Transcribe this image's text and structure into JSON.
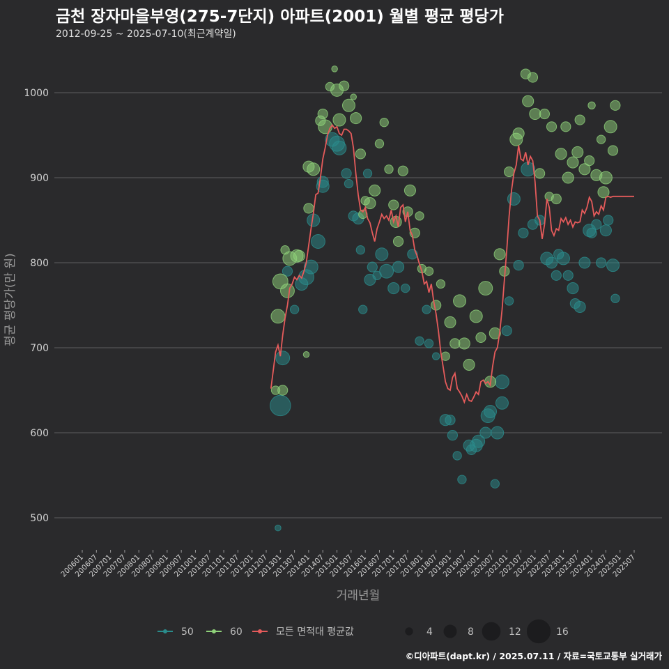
{
  "header": {
    "title": "금천 장자마을부영(275-7단지) 아파트(2001) 월별 평균 평당가",
    "subtitle": "2012-09-25 ~ 2025-07-10(최근계약일)"
  },
  "footer": {
    "source": "©디아파트(dapt.kr) / 2025.07.11 / 자료=국토교통부 실거래가"
  },
  "colors": {
    "area50": "#2a8c8c",
    "area60": "#8fd17a",
    "avg": "#e55b5b",
    "grid": "#555555",
    "background": "#2a2a2c"
  },
  "chart_data": {
    "type": "scatter",
    "xlabel": "거래년월",
    "ylabel": "평균 평당가(만 원)",
    "ylim": [
      450,
      1040
    ],
    "yticks": [
      500,
      600,
      700,
      800,
      900,
      1000
    ],
    "xticks": [
      "200601",
      "200607",
      "200701",
      "200707",
      "200801",
      "200807",
      "200901",
      "200907",
      "201001",
      "201007",
      "201101",
      "201107",
      "201201",
      "201207",
      "201301",
      "201307",
      "201401",
      "201407",
      "201501",
      "201507",
      "201601",
      "201607",
      "201701",
      "201707",
      "201801",
      "201807",
      "201901",
      "201907",
      "202001",
      "202007",
      "202101",
      "202107",
      "202201",
      "202207",
      "202301",
      "202307",
      "202401",
      "202407",
      "202501",
      "202507"
    ],
    "legend": {
      "series": [
        {
          "name": "50",
          "color": "#2a8c8c"
        },
        {
          "name": "60",
          "color": "#8fd17a"
        },
        {
          "name": "모든 면적대 평균값",
          "color": "#e55b5b"
        }
      ],
      "sizes": [
        4,
        8,
        12,
        16
      ]
    },
    "avg_line": [
      [
        "2012-09",
        652
      ],
      [
        "2012-11",
        695
      ],
      [
        "2012-12",
        703
      ],
      [
        "2013-01",
        690
      ],
      [
        "2013-02",
        715
      ],
      [
        "2013-03",
        735
      ],
      [
        "2013-04",
        750
      ],
      [
        "2013-05",
        770
      ],
      [
        "2013-06",
        775
      ],
      [
        "2013-07",
        783
      ],
      [
        "2013-08",
        780
      ],
      [
        "2013-09",
        785
      ],
      [
        "2013-10",
        782
      ],
      [
        "2013-11",
        790
      ],
      [
        "2013-12",
        800
      ],
      [
        "2014-01",
        820
      ],
      [
        "2014-02",
        840
      ],
      [
        "2014-03",
        858
      ],
      [
        "2014-04",
        880
      ],
      [
        "2014-05",
        882
      ],
      [
        "2014-06",
        900
      ],
      [
        "2014-07",
        922
      ],
      [
        "2014-08",
        935
      ],
      [
        "2014-09",
        950
      ],
      [
        "2014-10",
        958
      ],
      [
        "2014-11",
        962
      ],
      [
        "2014-12",
        958
      ],
      [
        "2015-01",
        960
      ],
      [
        "2015-02",
        952
      ],
      [
        "2015-03",
        950
      ],
      [
        "2015-04",
        957
      ],
      [
        "2015-05",
        957
      ],
      [
        "2015-06",
        955
      ],
      [
        "2015-07",
        952
      ],
      [
        "2015-08",
        935
      ],
      [
        "2015-09",
        905
      ],
      [
        "2015-10",
        880
      ],
      [
        "2015-11",
        862
      ],
      [
        "2015-12",
        860
      ],
      [
        "2016-01",
        865
      ],
      [
        "2016-02",
        852
      ],
      [
        "2016-03",
        847
      ],
      [
        "2016-04",
        835
      ],
      [
        "2016-05",
        825
      ],
      [
        "2016-06",
        840
      ],
      [
        "2016-07",
        848
      ],
      [
        "2016-08",
        857
      ],
      [
        "2016-09",
        852
      ],
      [
        "2016-10",
        855
      ],
      [
        "2016-11",
        850
      ],
      [
        "2016-12",
        862
      ],
      [
        "2017-01",
        848
      ],
      [
        "2017-02",
        855
      ],
      [
        "2017-03",
        842
      ],
      [
        "2017-04",
        865
      ],
      [
        "2017-05",
        868
      ],
      [
        "2017-06",
        848
      ],
      [
        "2017-07",
        860
      ],
      [
        "2017-08",
        838
      ],
      [
        "2017-09",
        832
      ],
      [
        "2017-10",
        815
      ],
      [
        "2017-11",
        808
      ],
      [
        "2017-12",
        798
      ],
      [
        "2018-01",
        790
      ],
      [
        "2018-02",
        775
      ],
      [
        "2018-03",
        778
      ],
      [
        "2018-04",
        765
      ],
      [
        "2018-05",
        775
      ],
      [
        "2018-06",
        755
      ],
      [
        "2018-07",
        740
      ],
      [
        "2018-08",
        720
      ],
      [
        "2018-09",
        695
      ],
      [
        "2018-10",
        678
      ],
      [
        "2018-11",
        660
      ],
      [
        "2018-12",
        652
      ],
      [
        "2019-01",
        650
      ],
      [
        "2019-02",
        665
      ],
      [
        "2019-03",
        670
      ],
      [
        "2019-04",
        652
      ],
      [
        "2019-05",
        648
      ],
      [
        "2019-06",
        643
      ],
      [
        "2019-07",
        636
      ],
      [
        "2019-08",
        645
      ],
      [
        "2019-09",
        638
      ],
      [
        "2019-10",
        637
      ],
      [
        "2019-11",
        642
      ],
      [
        "2019-12",
        648
      ],
      [
        "2020-01",
        645
      ],
      [
        "2020-02",
        660
      ],
      [
        "2020-03",
        662
      ],
      [
        "2020-04",
        658
      ],
      [
        "2020-05",
        660
      ],
      [
        "2020-06",
        656
      ],
      [
        "2020-07",
        678
      ],
      [
        "2020-08",
        695
      ],
      [
        "2020-09",
        700
      ],
      [
        "2020-10",
        718
      ],
      [
        "2020-11",
        745
      ],
      [
        "2020-12",
        780
      ],
      [
        "2021-01",
        815
      ],
      [
        "2021-02",
        855
      ],
      [
        "2021-03",
        885
      ],
      [
        "2021-04",
        905
      ],
      [
        "2021-05",
        915
      ],
      [
        "2021-06",
        938
      ],
      [
        "2021-07",
        922
      ],
      [
        "2021-08",
        920
      ],
      [
        "2021-09",
        930
      ],
      [
        "2021-10",
        915
      ],
      [
        "2021-11",
        925
      ],
      [
        "2021-12",
        920
      ],
      [
        "2022-01",
        895
      ],
      [
        "2022-02",
        855
      ],
      [
        "2022-03",
        850
      ],
      [
        "2022-04",
        828
      ],
      [
        "2022-05",
        845
      ],
      [
        "2022-06",
        875
      ],
      [
        "2022-07",
        865
      ],
      [
        "2022-08",
        838
      ],
      [
        "2022-09",
        832
      ],
      [
        "2022-10",
        840
      ],
      [
        "2022-11",
        838
      ],
      [
        "2022-12",
        852
      ],
      [
        "2023-01",
        848
      ],
      [
        "2023-02",
        853
      ],
      [
        "2023-03",
        845
      ],
      [
        "2023-04",
        850
      ],
      [
        "2023-05",
        842
      ],
      [
        "2023-06",
        848
      ],
      [
        "2023-07",
        847
      ],
      [
        "2023-08",
        848
      ],
      [
        "2023-09",
        862
      ],
      [
        "2023-10",
        858
      ],
      [
        "2023-11",
        865
      ],
      [
        "2023-12",
        877
      ],
      [
        "2024-01",
        872
      ],
      [
        "2024-02",
        855
      ],
      [
        "2024-03",
        860
      ],
      [
        "2024-04",
        857
      ],
      [
        "2024-05",
        867
      ],
      [
        "2024-06",
        862
      ],
      [
        "2024-07",
        877
      ],
      [
        "2024-08",
        878
      ],
      [
        "2024-09",
        877
      ],
      [
        "2024-10",
        878
      ],
      [
        "2024-11",
        878
      ],
      [
        "2024-12",
        878
      ],
      [
        "2025-01",
        878
      ],
      [
        "2025-02",
        878
      ],
      [
        "2025-03",
        878
      ],
      [
        "2025-04",
        878
      ],
      [
        "2025-05",
        878
      ],
      [
        "2025-06",
        878
      ],
      [
        "2025-07",
        878
      ]
    ],
    "points_50": [
      [
        "2013-01",
        632,
        14
      ],
      [
        "2013-02",
        688,
        9
      ],
      [
        "2012-12",
        488,
        3
      ],
      [
        "2013-04",
        790,
        6
      ],
      [
        "2013-07",
        745,
        5
      ],
      [
        "2013-10",
        775,
        8
      ],
      [
        "2013-12",
        783,
        10
      ],
      [
        "2014-02",
        795,
        9
      ],
      [
        "2014-03",
        850,
        8
      ],
      [
        "2014-05",
        825,
        9
      ],
      [
        "2014-07",
        890,
        8
      ],
      [
        "2014-07",
        895,
        7
      ],
      [
        "2014-11",
        945,
        9
      ],
      [
        "2015-01",
        940,
        10
      ],
      [
        "2015-02",
        935,
        9
      ],
      [
        "2015-05",
        905,
        6
      ],
      [
        "2015-06",
        893,
        5
      ],
      [
        "2015-08",
        855,
        6
      ],
      [
        "2015-10",
        852,
        7
      ],
      [
        "2015-11",
        815,
        5
      ],
      [
        "2015-12",
        745,
        5
      ],
      [
        "2016-02",
        905,
        5
      ],
      [
        "2016-03",
        780,
        7
      ],
      [
        "2016-04",
        795,
        6
      ],
      [
        "2016-06",
        785,
        5
      ],
      [
        "2016-08",
        810,
        8
      ],
      [
        "2016-10",
        790,
        9
      ],
      [
        "2017-01",
        770,
        7
      ],
      [
        "2017-03",
        795,
        7
      ],
      [
        "2017-06",
        770,
        5
      ],
      [
        "2017-09",
        810,
        6
      ],
      [
        "2017-12",
        708,
        5
      ],
      [
        "2018-03",
        745,
        5
      ],
      [
        "2018-04",
        705,
        5
      ],
      [
        "2018-07",
        690,
        4
      ],
      [
        "2018-11",
        615,
        7
      ],
      [
        "2019-01",
        615,
        6
      ],
      [
        "2019-02",
        597,
        6
      ],
      [
        "2019-04",
        573,
        5
      ],
      [
        "2019-06",
        545,
        5
      ],
      [
        "2019-09",
        585,
        7
      ],
      [
        "2019-10",
        580,
        6
      ],
      [
        "2019-12",
        585,
        8
      ],
      [
        "2020-01",
        590,
        8
      ],
      [
        "2020-04",
        600,
        7
      ],
      [
        "2020-05",
        620,
        9
      ],
      [
        "2020-06",
        625,
        8
      ],
      [
        "2020-08",
        540,
        5
      ],
      [
        "2020-09",
        600,
        8
      ],
      [
        "2020-11",
        635,
        8
      ],
      [
        "2020-11",
        660,
        9
      ],
      [
        "2021-01",
        720,
        6
      ],
      [
        "2021-02",
        755,
        5
      ],
      [
        "2021-04",
        875,
        8
      ],
      [
        "2021-06",
        797,
        6
      ],
      [
        "2021-08",
        835,
        6
      ],
      [
        "2021-10",
        910,
        9
      ],
      [
        "2021-12",
        845,
        6
      ],
      [
        "2022-03",
        850,
        6
      ],
      [
        "2022-06",
        805,
        8
      ],
      [
        "2022-08",
        800,
        7
      ],
      [
        "2022-10",
        785,
        6
      ],
      [
        "2022-11",
        810,
        6
      ],
      [
        "2023-01",
        805,
        8
      ],
      [
        "2023-03",
        785,
        6
      ],
      [
        "2023-05",
        770,
        7
      ],
      [
        "2023-06",
        752,
        6
      ],
      [
        "2023-08",
        748,
        7
      ],
      [
        "2023-10",
        800,
        7
      ],
      [
        "2023-12",
        838,
        8
      ],
      [
        "2024-01",
        835,
        6
      ],
      [
        "2024-03",
        845,
        6
      ],
      [
        "2024-05",
        800,
        6
      ],
      [
        "2024-07",
        838,
        7
      ],
      [
        "2024-08",
        850,
        6
      ],
      [
        "2024-10",
        797,
        8
      ],
      [
        "2024-11",
        758,
        5
      ]
    ],
    "points_60": [
      [
        "2012-11",
        650,
        5
      ],
      [
        "2012-12",
        737,
        9
      ],
      [
        "2013-01",
        778,
        10
      ],
      [
        "2013-02",
        650,
        6
      ],
      [
        "2013-03",
        815,
        5
      ],
      [
        "2013-05",
        805,
        9
      ],
      [
        "2013-04",
        767,
        9
      ],
      [
        "2013-08",
        808,
        8
      ],
      [
        "2013-09",
        808,
        7
      ],
      [
        "2013-12",
        692,
        3
      ],
      [
        "2014-01",
        864,
        6
      ],
      [
        "2014-01",
        913,
        7
      ],
      [
        "2014-03",
        910,
        8
      ],
      [
        "2014-06",
        967,
        6
      ],
      [
        "2014-07",
        975,
        6
      ],
      [
        "2014-08",
        960,
        9
      ],
      [
        "2014-10",
        1007,
        5
      ],
      [
        "2014-12",
        1028,
        3
      ],
      [
        "2015-01",
        1003,
        8
      ],
      [
        "2015-02",
        968,
        8
      ],
      [
        "2015-04",
        1008,
        6
      ],
      [
        "2015-06",
        985,
        8
      ],
      [
        "2015-08",
        995,
        3
      ],
      [
        "2015-09",
        970,
        7
      ],
      [
        "2015-11",
        928,
        6
      ],
      [
        "2015-12",
        857,
        5
      ],
      [
        "2016-01",
        873,
        5
      ],
      [
        "2016-03",
        870,
        7
      ],
      [
        "2016-05",
        885,
        7
      ],
      [
        "2016-07",
        940,
        5
      ],
      [
        "2016-09",
        965,
        5
      ],
      [
        "2016-11",
        910,
        5
      ],
      [
        "2017-01",
        868,
        6
      ],
      [
        "2017-02",
        848,
        7
      ],
      [
        "2017-03",
        825,
        6
      ],
      [
        "2017-05",
        908,
        6
      ],
      [
        "2017-07",
        860,
        6
      ],
      [
        "2017-08",
        885,
        7
      ],
      [
        "2017-10",
        835,
        6
      ],
      [
        "2017-12",
        855,
        5
      ],
      [
        "2018-01",
        793,
        5
      ],
      [
        "2018-04",
        790,
        5
      ],
      [
        "2018-07",
        750,
        6
      ],
      [
        "2018-09",
        775,
        5
      ],
      [
        "2018-11",
        690,
        5
      ],
      [
        "2019-01",
        730,
        7
      ],
      [
        "2019-03",
        705,
        6
      ],
      [
        "2019-05",
        755,
        8
      ],
      [
        "2019-07",
        705,
        7
      ],
      [
        "2019-09",
        680,
        7
      ],
      [
        "2019-12",
        737,
        8
      ],
      [
        "2020-02",
        712,
        6
      ],
      [
        "2020-04",
        770,
        9
      ],
      [
        "2020-06",
        660,
        7
      ],
      [
        "2020-08",
        717,
        7
      ],
      [
        "2020-10",
        810,
        7
      ],
      [
        "2020-12",
        790,
        6
      ],
      [
        "2021-02",
        907,
        6
      ],
      [
        "2021-05",
        945,
        8
      ],
      [
        "2021-06",
        952,
        7
      ],
      [
        "2021-09",
        1022,
        6
      ],
      [
        "2021-10",
        990,
        7
      ],
      [
        "2021-12",
        1018,
        6
      ],
      [
        "2022-01",
        975,
        7
      ],
      [
        "2022-03",
        905,
        6
      ],
      [
        "2022-05",
        975,
        6
      ],
      [
        "2022-07",
        878,
        5
      ],
      [
        "2022-08",
        960,
        6
      ],
      [
        "2022-10",
        875,
        6
      ],
      [
        "2022-12",
        928,
        7
      ],
      [
        "2023-02",
        960,
        6
      ],
      [
        "2023-03",
        900,
        7
      ],
      [
        "2023-05",
        918,
        7
      ],
      [
        "2023-07",
        930,
        7
      ],
      [
        "2023-08",
        968,
        6
      ],
      [
        "2023-10",
        910,
        7
      ],
      [
        "2023-12",
        920,
        6
      ],
      [
        "2024-01",
        985,
        4
      ],
      [
        "2024-03",
        903,
        7
      ],
      [
        "2024-05",
        945,
        5
      ],
      [
        "2024-06",
        883,
        7
      ],
      [
        "2024-07",
        900,
        8
      ],
      [
        "2024-09",
        960,
        8
      ],
      [
        "2024-10",
        932,
        6
      ],
      [
        "2024-11",
        985,
        6
      ]
    ]
  }
}
